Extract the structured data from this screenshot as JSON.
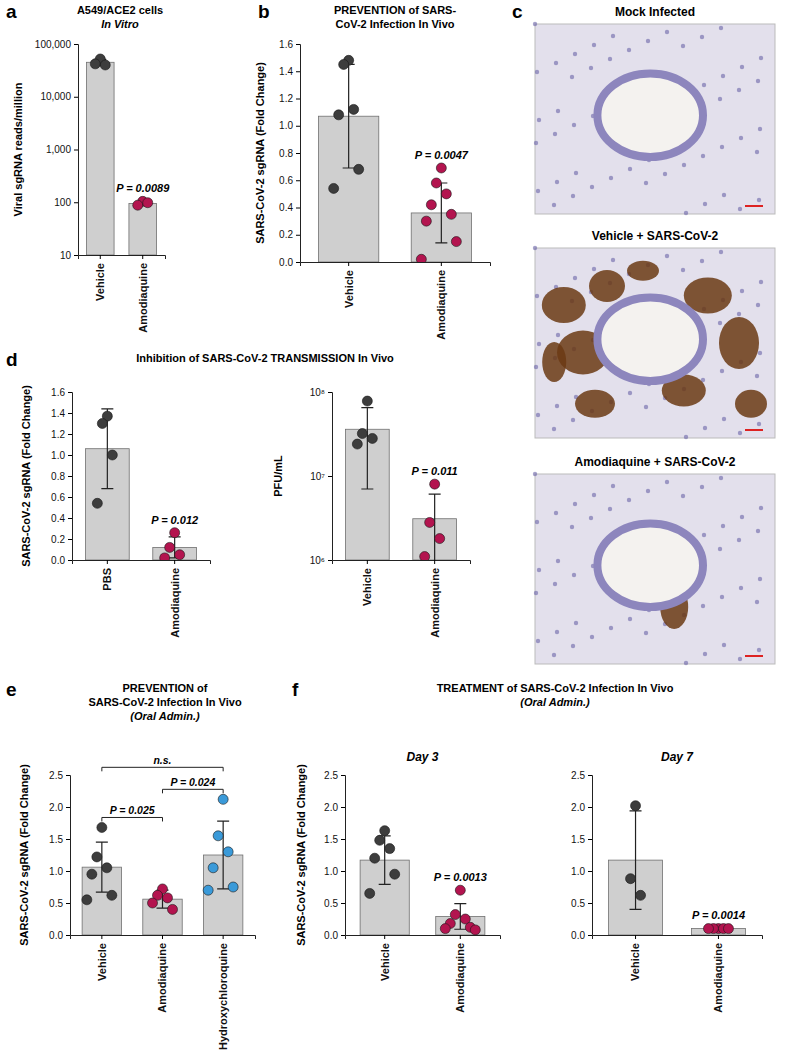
{
  "chart_data": [
    {
      "type": "bar",
      "panel": "a",
      "title": [
        "A549/ACE2 cells"
      ],
      "subtitle": "In Vitro",
      "categories": [
        "Vehicle",
        "Amodiaquine"
      ],
      "values": [
        45000,
        95
      ],
      "errors": [
        6000,
        8
      ],
      "points": [
        [
          52000,
          42000,
          40000
        ],
        [
          104,
          88,
          98
        ]
      ],
      "color": "#cfcfcf",
      "point_colors": [
        "#3d3d3d",
        "#b3144f"
      ],
      "log": "y",
      "ylim": [
        10,
        100000
      ],
      "yticks": [
        10,
        100,
        {
          "value": 1000,
          "label": "1,000"
        },
        {
          "value": 10000,
          "label": "10,000"
        },
        {
          "value": 100000,
          "label": "100,000"
        }
      ],
      "y_label": "Viral sgRNA reads/million",
      "annotations": [
        {
          "category": "Amodiaquine",
          "text": "P = 0.0089"
        }
      ]
    },
    {
      "type": "bar",
      "panel": "b",
      "title": [
        "PREVENTION of SARS-",
        "CoV-2 Infection In Vivo"
      ],
      "categories": [
        "Vehicle",
        "Amodiaquine"
      ],
      "values": [
        1.07,
        0.36
      ],
      "errors": [
        0.38,
        0.22
      ],
      "points": [
        [
          1.48,
          1.45,
          1.12,
          1.08,
          0.68,
          0.54
        ],
        [
          0.69,
          0.58,
          0.5,
          0.42,
          0.35,
          0.3,
          0.15,
          0.02
        ]
      ],
      "color": "#cfcfcf",
      "point_colors": [
        "#3d3d3d",
        "#b3144f"
      ],
      "ylim": [
        0,
        1.6
      ],
      "yticks": [
        {
          "value": 0,
          "label": "0.0"
        },
        0.2,
        0.4,
        0.6,
        0.8,
        {
          "value": 1,
          "label": "1.0"
        },
        1.2,
        1.4,
        1.6
      ],
      "y_label": "SARS-CoV-2 sgRNA (Fold Change)",
      "annotations": [
        {
          "category": "Amodiaquine",
          "text": "P = 0.0047"
        }
      ]
    },
    {
      "type": "bar",
      "panel": "d",
      "title": [
        "Inhibition of SARS-CoV-2 TRANSMISSION In Vivo"
      ],
      "categories": [
        "PBS",
        "Amodiaquine"
      ],
      "values": [
        1.06,
        0.12
      ],
      "errors": [
        0.38,
        0.1
      ],
      "points": [
        [
          1.37,
          1.3,
          1.0,
          0.54
        ],
        [
          0.26,
          0.12,
          0.05,
          0.02
        ]
      ],
      "color": "#cfcfcf",
      "point_colors": [
        "#3d3d3d",
        "#b3144f"
      ],
      "ylim": [
        0,
        1.6
      ],
      "yticks": [
        {
          "value": 0,
          "label": "0.0"
        },
        0.2,
        0.4,
        0.6,
        0.8,
        {
          "value": 1,
          "label": "1.0"
        },
        1.2,
        1.4,
        1.6
      ],
      "y_label": "SARS-CoV-2 sgRNA (Fold Change)",
      "annotations": [
        {
          "category": "Amodiaquine",
          "text": "P = 0.012"
        }
      ]
    },
    {
      "type": "bar",
      "categories": [
        "Vehicle",
        "Amodiaquine"
      ],
      "values": [
        36000000,
        3100000
      ],
      "errors": [
        29000000,
        3000000
      ],
      "points": [
        [
          78000000,
          32000000,
          28000000,
          24000000
        ],
        [
          8000000,
          2800000,
          1800000,
          1100000
        ]
      ],
      "color": "#cfcfcf",
      "point_colors": [
        "#3d3d3d",
        "#b3144f"
      ],
      "log": "y",
      "ylim": [
        1000000,
        100000000
      ],
      "yticks": [
        {
          "value": 1000000,
          "label": "10⁶"
        },
        {
          "value": 10000000,
          "label": "10⁷"
        },
        {
          "value": 100000000,
          "label": "10⁸"
        }
      ],
      "y_label": "PFU/mL",
      "annotations": [
        {
          "category": "Amodiaquine",
          "text": "P = 0.011"
        }
      ]
    },
    {
      "type": "bar",
      "panel": "e",
      "title": [
        "PREVENTION of",
        "SARS-CoV-2 Infection In Vivo"
      ],
      "subtitle": "(Oral Admin.)",
      "categories": [
        "Vehicle",
        "Amodiaquine",
        "Hydroxychloroquine"
      ],
      "values": [
        1.06,
        0.56,
        1.25
      ],
      "errors": [
        0.39,
        0.14,
        0.53
      ],
      "points": [
        [
          1.68,
          1.22,
          1.05,
          0.95,
          0.62,
          0.55
        ],
        [
          0.72,
          0.62,
          0.58,
          0.5,
          0.4
        ],
        [
          2.12,
          1.55,
          1.3,
          1.05,
          0.75,
          0.7
        ]
      ],
      "color": "#cfcfcf",
      "point_colors": [
        "#3d3d3d",
        "#b3144f",
        "#3a9ad9"
      ],
      "ylim": [
        0,
        2.5
      ],
      "yticks": [
        {
          "value": 0,
          "label": "0.0"
        },
        0.5,
        {
          "value": 1,
          "label": "1.0"
        },
        1.5,
        {
          "value": 2,
          "label": "2.0"
        },
        2.5
      ],
      "y_label": "SARS-CoV-2 sgRNA (Fold Change)",
      "brackets": [
        {
          "from": "Vehicle",
          "to": "Hydroxychloroquine",
          "text": "n.s."
        },
        {
          "from": "Vehicle",
          "to": "Amodiaquine",
          "text": "P = 0.025"
        },
        {
          "from": "Amodiaquine",
          "to": "Hydroxychloroquine",
          "text": "P = 0.024"
        }
      ]
    },
    {
      "type": "bar",
      "panel": "f",
      "title": [
        "TREATMENT of SARS-CoV-2 Infection In Vivo"
      ],
      "subtitle": "(Oral Admin.)",
      "panel_title": "Day 3",
      "categories": [
        "Vehicle",
        "Amodiaquine"
      ],
      "values": [
        1.17,
        0.29
      ],
      "errors": [
        0.38,
        0.2
      ],
      "points": [
        [
          1.63,
          1.48,
          1.35,
          1.2,
          0.95,
          0.65
        ],
        [
          0.7,
          0.32,
          0.25,
          0.18,
          0.12,
          0.1,
          0.08
        ]
      ],
      "color": "#cfcfcf",
      "point_colors": [
        "#3d3d3d",
        "#b3144f"
      ],
      "ylim": [
        0,
        2.5
      ],
      "yticks": [
        {
          "value": 0,
          "label": "0.0"
        },
        0.5,
        {
          "value": 1,
          "label": "1.0"
        },
        1.5,
        {
          "value": 2,
          "label": "2.0"
        },
        2.5
      ],
      "y_label": "SARS-CoV-2 sgRNA (Fold Change)",
      "annotations": [
        {
          "category": "Amodiaquine",
          "text": "P = 0.0013"
        }
      ]
    },
    {
      "type": "bar",
      "panel_title": "Day 7",
      "categories": [
        "Vehicle",
        "Amodiaquine"
      ],
      "values": [
        1.17,
        0.1
      ],
      "errors": [
        0.77,
        0.005
      ],
      "points": [
        [
          2.02,
          0.88,
          0.62
        ],
        [
          0.1,
          0.1,
          0.1,
          0.1,
          0.1
        ]
      ],
      "color": "#cfcfcf",
      "point_colors": [
        "#3d3d3d",
        "#b3144f"
      ],
      "ylim": [
        0,
        2.5
      ],
      "yticks": [
        {
          "value": 0,
          "label": "0.0"
        },
        0.5,
        {
          "value": 1,
          "label": "1.0"
        },
        1.5,
        {
          "value": 2,
          "label": "2.0"
        },
        2.5
      ],
      "annotations": [
        {
          "category": "Amodiaquine",
          "text": "P = 0.0014"
        }
      ]
    }
  ],
  "image_panel": {
    "label": "c",
    "captions": [
      "Mock Infected",
      "Vehicle + SARS-CoV-2",
      "Amodiaquine + SARS-CoV-2"
    ]
  }
}
